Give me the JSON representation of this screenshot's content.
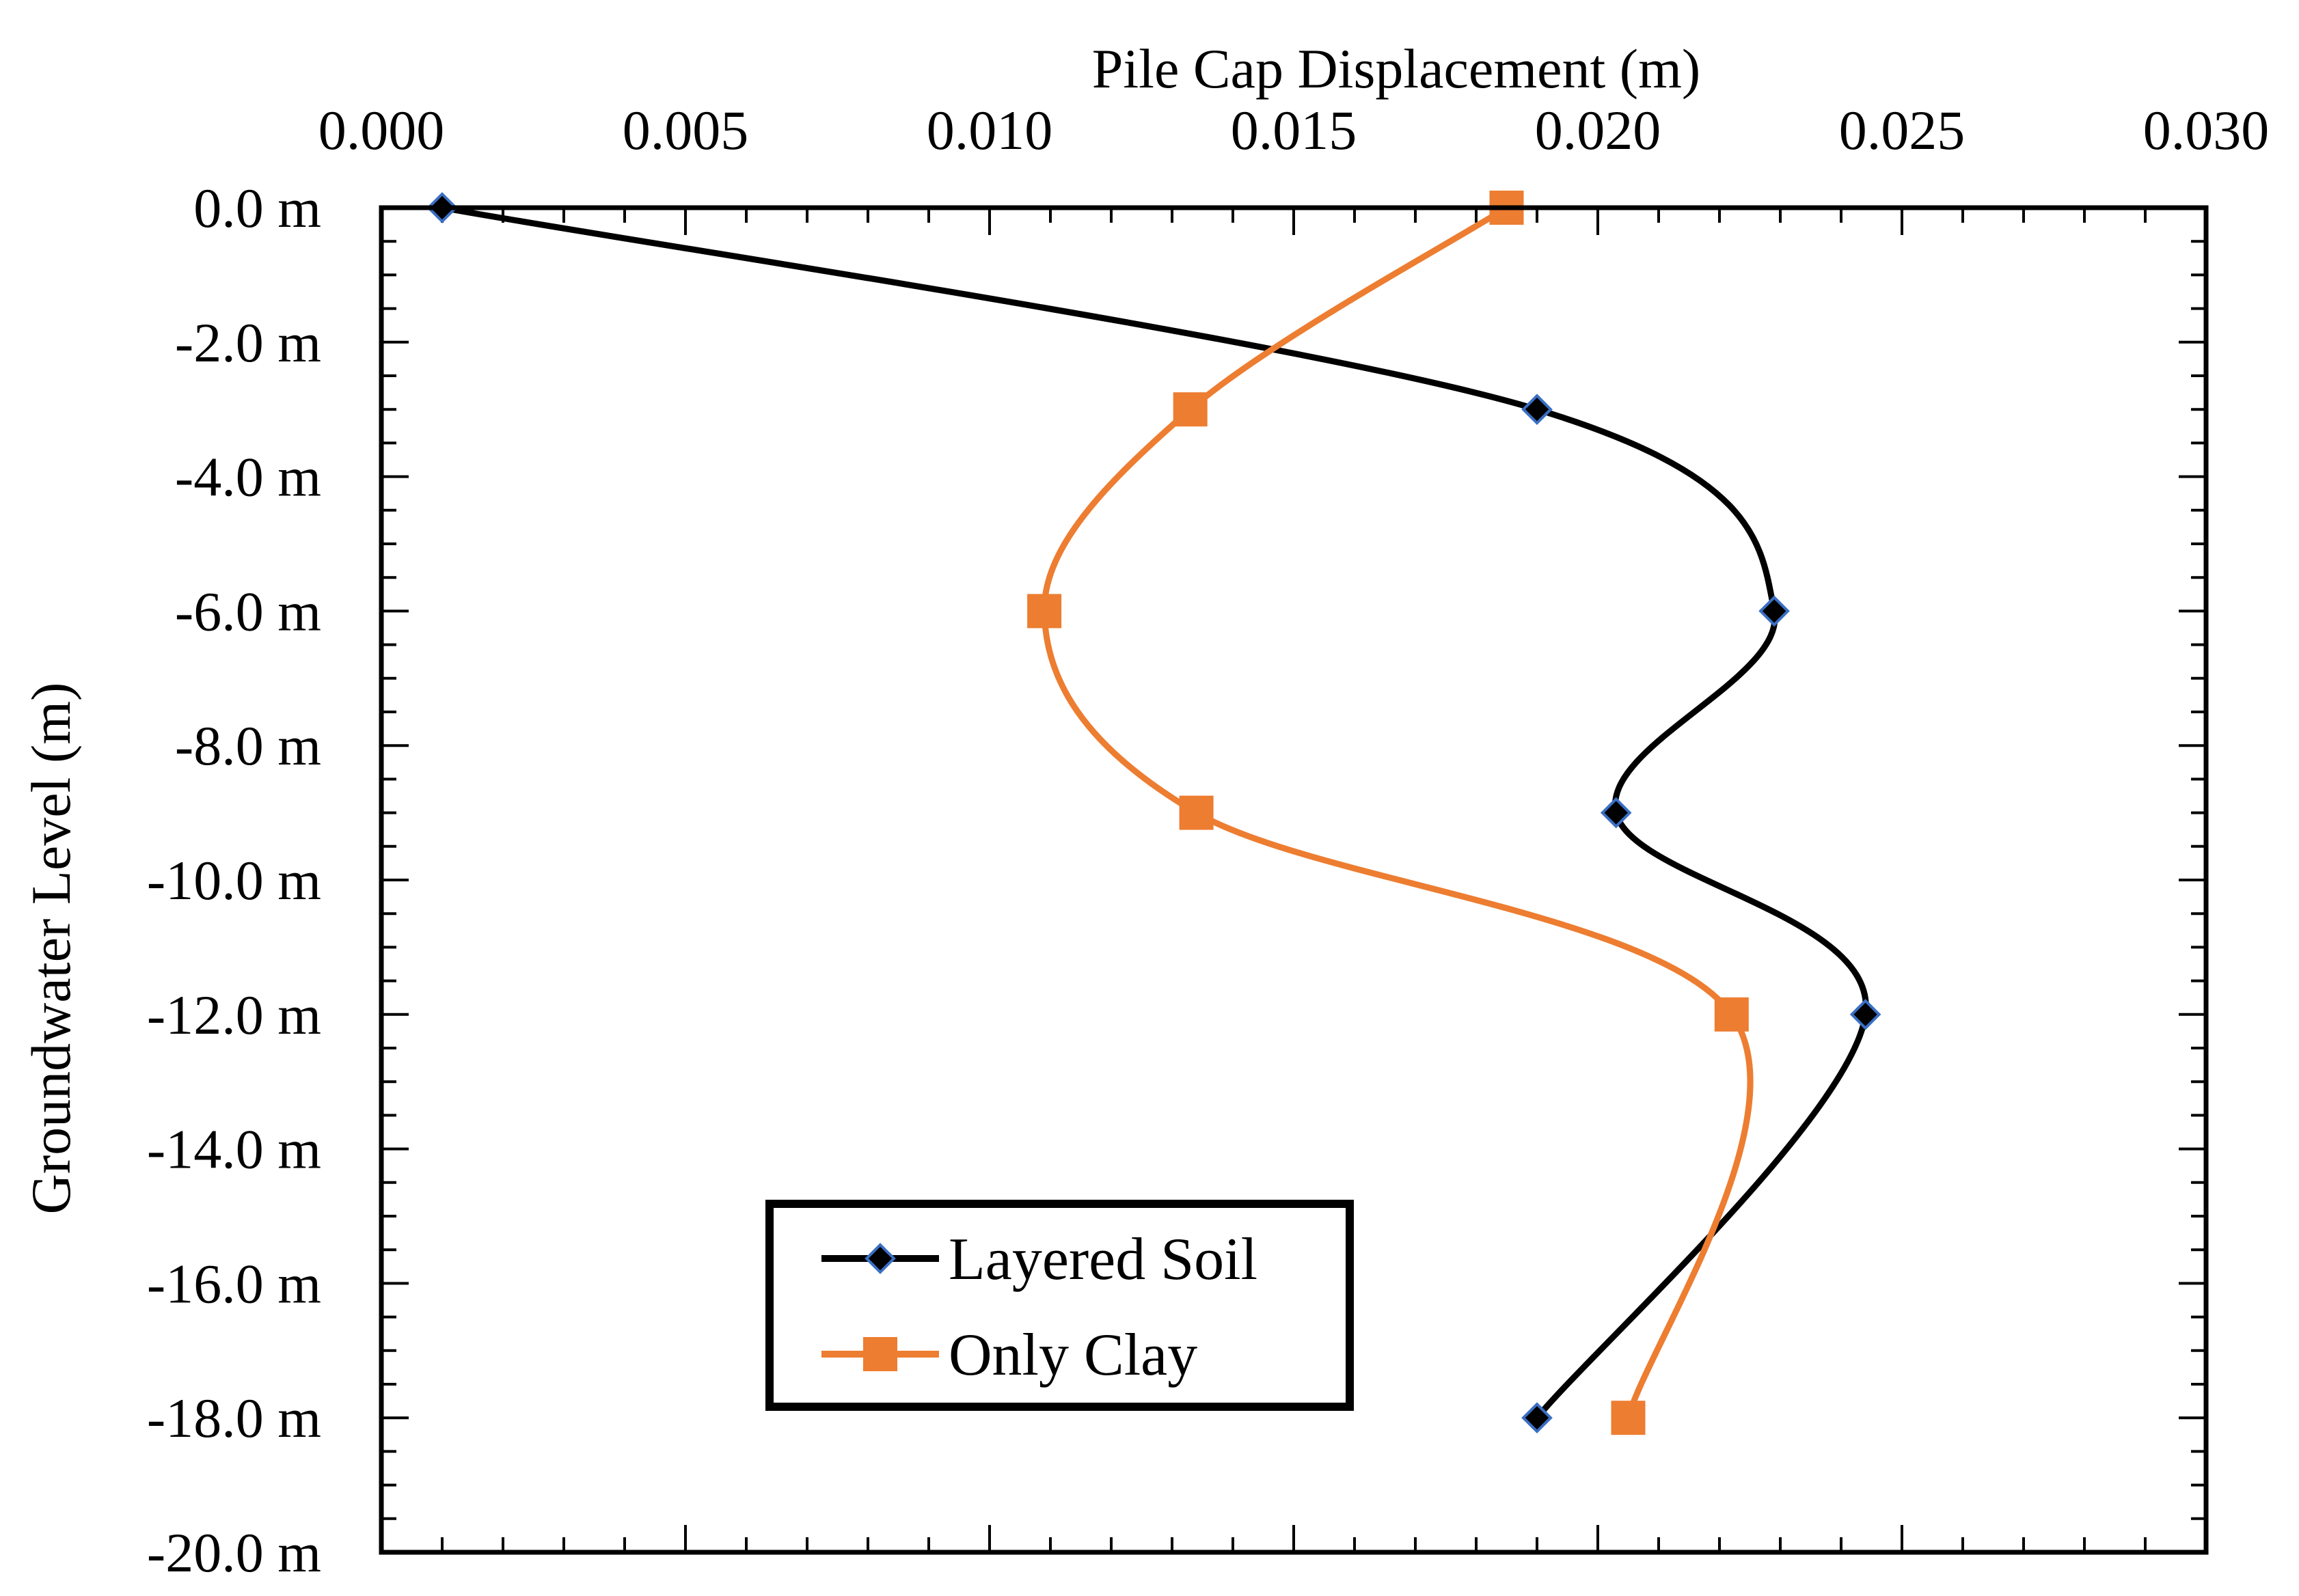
{
  "chart_data": {
    "type": "line",
    "title": "",
    "xlabel": "Pile Cap Displacement (m)",
    "ylabel": "Groundwater Level (m)",
    "xlim": [
      0.0,
      0.03
    ],
    "ylim": [
      -20.0,
      0.0
    ],
    "x_axis_position": "top",
    "x_ticks": [
      0.0,
      0.005,
      0.01,
      0.015,
      0.02,
      0.025,
      0.03
    ],
    "x_tick_labels": [
      "0.000",
      "0.005",
      "0.010",
      "0.015",
      "0.020",
      "0.025",
      "0.030"
    ],
    "y_ticks": [
      0.0,
      -2.0,
      -4.0,
      -6.0,
      -8.0,
      -10.0,
      -12.0,
      -14.0,
      -16.0,
      -18.0,
      -20.0
    ],
    "y_tick_labels": [
      "0.0 m",
      "-2.0 m",
      "-4.0 m",
      "-6.0 m",
      "-8.0 m",
      "-10.0 m",
      "-12.0 m",
      "-14.0 m",
      "-16.0 m",
      "-18.0 m",
      "-20.0 m"
    ],
    "grid": false,
    "smooth": true,
    "legend_position": "bottom-left",
    "series": [
      {
        "name": "Layered Soil",
        "color": "#000000",
        "marker": "diamond",
        "marker_fill": "#000000",
        "marker_edge": "#3a6fc4",
        "points": [
          {
            "x": 0.001,
            "y": 0.0
          },
          {
            "x": 0.019,
            "y": -3.0
          },
          {
            "x": 0.0229,
            "y": -6.0
          },
          {
            "x": 0.0203,
            "y": -9.0
          },
          {
            "x": 0.0244,
            "y": -12.0
          },
          {
            "x": 0.019,
            "y": -18.0
          }
        ]
      },
      {
        "name": "Only Clay",
        "color": "#ed7d31",
        "marker": "square",
        "marker_fill": "#ed7d31",
        "marker_edge": "#ed7d31",
        "points": [
          {
            "x": 0.0185,
            "y": 0.0
          },
          {
            "x": 0.0133,
            "y": -3.0
          },
          {
            "x": 0.0109,
            "y": -6.0
          },
          {
            "x": 0.0134,
            "y": -9.0
          },
          {
            "x": 0.0222,
            "y": -12.0
          },
          {
            "x": 0.0205,
            "y": -18.0
          }
        ]
      }
    ]
  }
}
